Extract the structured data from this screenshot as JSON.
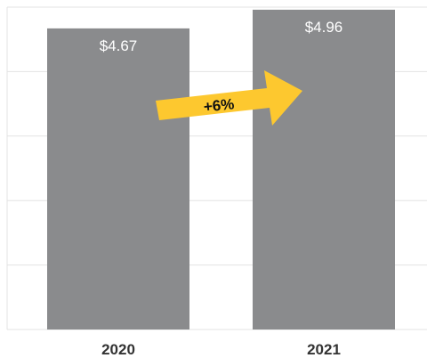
{
  "chart_data": {
    "type": "bar",
    "categories": [
      "2020",
      "2021"
    ],
    "values": [
      4.67,
      4.96
    ],
    "value_labels": [
      "$4.67",
      "$4.96"
    ],
    "title": "",
    "xlabel": "",
    "ylabel": "",
    "ylim": [
      0,
      5.0
    ],
    "grid": true,
    "legend": "none",
    "annotation": {
      "text": "+6%"
    },
    "colors": {
      "bar": "#8a8b8d",
      "arrow": "#fdc82f",
      "grid": "#e3e3e3"
    }
  }
}
